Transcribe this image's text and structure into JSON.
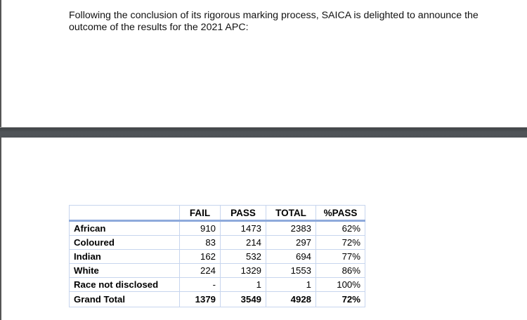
{
  "document": {
    "paragraph": "Following the conclusion of its rigorous marking process, SAICA is delighted to announce the outcome of the results for the 2021 APC:"
  },
  "table": {
    "headers": [
      "",
      "FAIL",
      "PASS",
      "TOTAL",
      "%PASS"
    ],
    "rows": [
      {
        "label": "African",
        "fail": "910",
        "pass": "1473",
        "total": "2383",
        "pct": "62%"
      },
      {
        "label": "Coloured",
        "fail": "83",
        "pass": "214",
        "total": "297",
        "pct": "72%"
      },
      {
        "label": "Indian",
        "fail": "162",
        "pass": "532",
        "total": "694",
        "pct": "77%"
      },
      {
        "label": "White",
        "fail": "224",
        "pass": "1329",
        "total": "1553",
        "pct": "86%"
      },
      {
        "label": "Race not disclosed",
        "fail": "-",
        "pass": "1",
        "total": "1",
        "pct": "100%"
      },
      {
        "label": "Grand Total",
        "fail": "1379",
        "pass": "3549",
        "total": "4928",
        "pct": "72%"
      }
    ]
  },
  "colors": {
    "table_border": "#c7d5ee",
    "header_rule": "#8eaadb",
    "page_gap": "#4f5357"
  }
}
